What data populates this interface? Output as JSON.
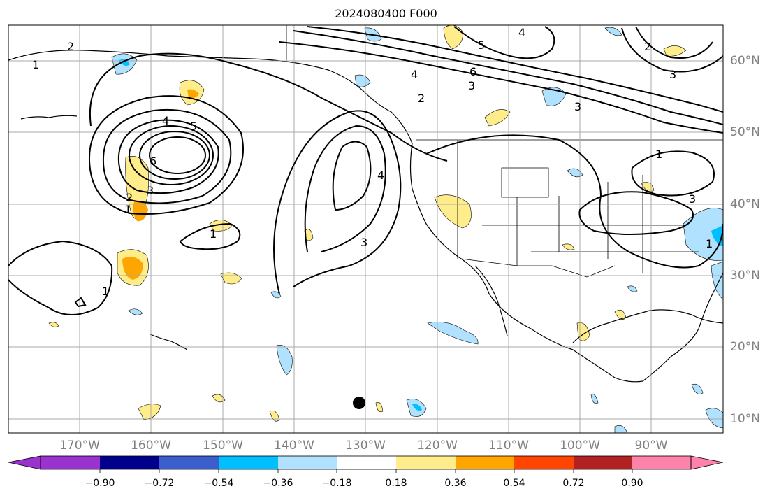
{
  "title": "2024080400 F000",
  "map": {
    "lon_labels": [
      "170°W",
      "160°W",
      "150°W",
      "140°W",
      "130°W",
      "120°W",
      "110°W",
      "100°W",
      "90°W"
    ],
    "lat_labels": [
      "60°N",
      "50°N",
      "40°N",
      "30°N",
      "20°N",
      "10°N"
    ],
    "contour_labels": [
      "1",
      "2",
      "3",
      "4",
      "5",
      "6",
      "1",
      "2",
      "3",
      "4",
      "5",
      "6",
      "4",
      "3",
      "4",
      "2",
      "3",
      "1",
      "1",
      "1",
      "2",
      "3",
      "1",
      "3"
    ],
    "marker": "storm-center-dot"
  },
  "colorbar": {
    "ticks": [
      "−0.90",
      "−0.72",
      "−0.54",
      "−0.36",
      "−0.18",
      "0.18",
      "0.36",
      "0.54",
      "0.72",
      "0.90"
    ],
    "colors": [
      "#9a32cd",
      "#00008b",
      "#3a5fcd",
      "#00bfff",
      "#b0e2ff",
      "#ffffff",
      "#ffec8b",
      "#ffa500",
      "#ff4500",
      "#b22222",
      "#ff82ab"
    ]
  }
}
